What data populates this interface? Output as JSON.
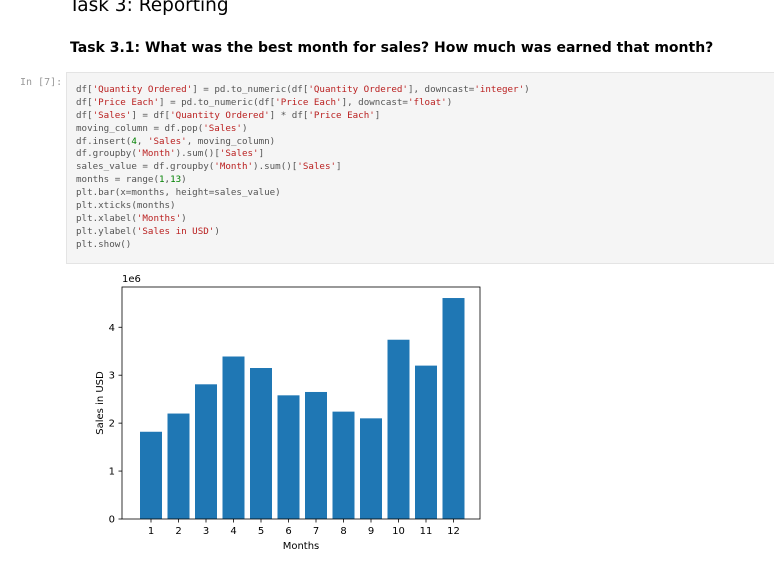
{
  "headings": {
    "task": "Task 3: Reporting",
    "subtask": "Task 3.1: What was the best month for sales? How much was earned that month?"
  },
  "cell": {
    "prompt": "In [7]:",
    "code_lines": [
      [
        {
          "t": "df[",
          "c": "p"
        },
        {
          "t": "'Quantity Ordered'",
          "c": "s"
        },
        {
          "t": "] = pd.to_numeric(df[",
          "c": "p"
        },
        {
          "t": "'Quantity Ordered'",
          "c": "s"
        },
        {
          "t": "], downcast=",
          "c": "p"
        },
        {
          "t": "'integer'",
          "c": "s"
        },
        {
          "t": ")",
          "c": "p"
        }
      ],
      [
        {
          "t": "df[",
          "c": "p"
        },
        {
          "t": "'Price Each'",
          "c": "s"
        },
        {
          "t": "] = pd.to_numeric(df[",
          "c": "p"
        },
        {
          "t": "'Price Each'",
          "c": "s"
        },
        {
          "t": "], downcast=",
          "c": "p"
        },
        {
          "t": "'float'",
          "c": "s"
        },
        {
          "t": ")",
          "c": "p"
        }
      ],
      [
        {
          "t": "df[",
          "c": "p"
        },
        {
          "t": "'Sales'",
          "c": "s"
        },
        {
          "t": "] = df[",
          "c": "p"
        },
        {
          "t": "'Quantity Ordered'",
          "c": "s"
        },
        {
          "t": "] * df[",
          "c": "p"
        },
        {
          "t": "'Price Each'",
          "c": "s"
        },
        {
          "t": "]",
          "c": "p"
        }
      ],
      [
        {
          "t": "moving_column = df.pop(",
          "c": "p"
        },
        {
          "t": "'Sales'",
          "c": "s"
        },
        {
          "t": ")",
          "c": "p"
        }
      ],
      [
        {
          "t": "df.insert(",
          "c": "p"
        },
        {
          "t": "4",
          "c": "n"
        },
        {
          "t": ", ",
          "c": "p"
        },
        {
          "t": "'Sales'",
          "c": "s"
        },
        {
          "t": ", moving_column)",
          "c": "p"
        }
      ],
      [
        {
          "t": "df.groupby(",
          "c": "p"
        },
        {
          "t": "'Month'",
          "c": "s"
        },
        {
          "t": ").sum()[",
          "c": "p"
        },
        {
          "t": "'Sales'",
          "c": "s"
        },
        {
          "t": "]",
          "c": "p"
        }
      ],
      [
        {
          "t": "sales_value = df.groupby(",
          "c": "p"
        },
        {
          "t": "'Month'",
          "c": "s"
        },
        {
          "t": ").sum()[",
          "c": "p"
        },
        {
          "t": "'Sales'",
          "c": "s"
        },
        {
          "t": "]",
          "c": "p"
        }
      ],
      [
        {
          "t": "months = range(",
          "c": "p"
        },
        {
          "t": "1",
          "c": "n"
        },
        {
          "t": ",",
          "c": "p"
        },
        {
          "t": "13",
          "c": "n"
        },
        {
          "t": ")",
          "c": "p"
        }
      ],
      [
        {
          "t": "plt.bar(x=months, height=sales_value)",
          "c": "p"
        }
      ],
      [
        {
          "t": "plt.xticks(months)",
          "c": "p"
        }
      ],
      [
        {
          "t": "plt.xlabel(",
          "c": "p"
        },
        {
          "t": "'Months'",
          "c": "s"
        },
        {
          "t": ")",
          "c": "p"
        }
      ],
      [
        {
          "t": "plt.ylabel(",
          "c": "p"
        },
        {
          "t": "'Sales in USD'",
          "c": "s"
        },
        {
          "t": ")",
          "c": "p"
        }
      ],
      [
        {
          "t": "plt.show()",
          "c": "p"
        }
      ]
    ]
  },
  "colors": {
    "bar": "#1f77b4",
    "string": "#ba2121",
    "number": "#008000",
    "text": "#333333"
  },
  "chart_data": {
    "type": "bar",
    "categories": [
      "1",
      "2",
      "3",
      "4",
      "5",
      "6",
      "7",
      "8",
      "9",
      "10",
      "11",
      "12"
    ],
    "values": [
      1.82,
      2.2,
      2.81,
      3.39,
      3.15,
      2.58,
      2.65,
      2.24,
      2.1,
      3.74,
      3.2,
      4.61
    ],
    "value_multiplier_label": "1e6",
    "xlabel": "Months",
    "ylabel": "Sales in USD",
    "yticks": [
      "0",
      "1",
      "2",
      "3",
      "4"
    ],
    "ylim": [
      0,
      4.84
    ],
    "grid": false,
    "legend": "none"
  }
}
